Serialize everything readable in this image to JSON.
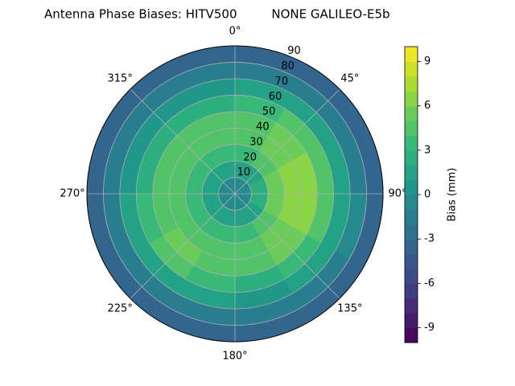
{
  "chart_data": {
    "type": "polar_contour",
    "title": "Antenna Phase Biases: HITV500         NONE GALILEO-E5b",
    "theta_zero": "N",
    "theta_direction": "clockwise",
    "rlim": [
      0,
      90
    ],
    "rticks": [
      10,
      20,
      30,
      40,
      50,
      60,
      70,
      80,
      90
    ],
    "thetaticks": [
      {
        "value": 0,
        "label": "0°"
      },
      {
        "value": 45,
        "label": "45°"
      },
      {
        "value": 90,
        "label": "90°"
      },
      {
        "value": 135,
        "label": "135°"
      },
      {
        "value": 180,
        "label": "180°"
      },
      {
        "value": 225,
        "label": "225°"
      },
      {
        "value": 270,
        "label": "270°"
      },
      {
        "value": 315,
        "label": "315°"
      }
    ],
    "grid": true,
    "azimuth_bins": [
      0,
      30,
      60,
      90,
      120,
      150,
      180,
      210,
      240,
      270,
      300,
      330,
      360
    ],
    "zenith_bins": [
      0,
      10,
      20,
      30,
      40,
      50,
      60,
      70,
      80,
      90
    ],
    "values": [
      [
        -1,
        -1,
        -1,
        -1,
        -1,
        -1,
        -1,
        -1,
        -1,
        -1,
        -1,
        -1
      ],
      [
        1,
        1,
        2,
        2,
        1,
        1,
        1,
        1,
        1,
        1,
        1,
        1
      ],
      [
        3,
        4,
        5,
        5,
        4,
        3,
        3,
        3,
        3,
        3,
        3,
        3
      ],
      [
        4,
        5,
        6,
        6,
        5,
        4,
        4,
        4,
        4,
        4,
        4,
        4
      ],
      [
        4,
        5,
        6,
        6,
        5,
        4,
        4,
        5,
        4,
        4,
        4,
        4
      ],
      [
        3,
        4,
        4,
        4,
        3,
        2,
        3,
        4,
        3,
        2,
        2,
        2
      ],
      [
        1,
        1,
        1,
        1,
        1,
        0,
        1,
        1,
        1,
        0,
        0,
        0
      ],
      [
        -2,
        -2,
        -2,
        -1,
        -2,
        -2,
        -2,
        -2,
        -2,
        -2,
        -2,
        -2
      ],
      [
        -4,
        -4,
        -4,
        -4,
        -4,
        -4,
        -4,
        -4,
        -4,
        -4,
        -4,
        -4
      ]
    ],
    "colorbar": {
      "label": "Bias (mm)",
      "colormap": "viridis",
      "lim": [
        -10,
        10
      ],
      "ticks": [
        -9,
        -6,
        -3,
        0,
        3,
        6,
        9
      ],
      "levels": [
        -10,
        -9,
        -8,
        -7,
        -6,
        -5,
        -4,
        -3,
        -2,
        -1,
        0,
        1,
        2,
        3,
        4,
        5,
        6,
        7,
        8,
        9,
        10
      ]
    }
  }
}
